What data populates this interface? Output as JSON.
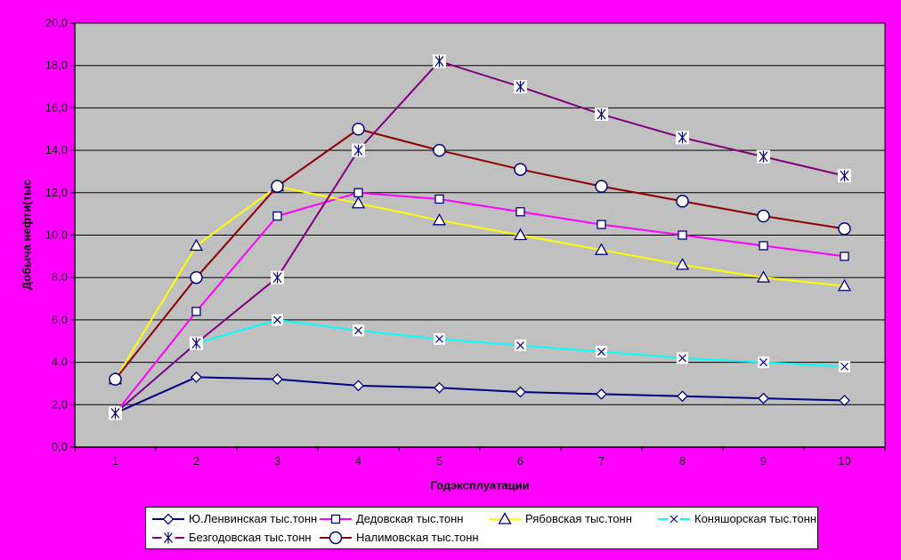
{
  "chart_data": {
    "type": "line",
    "title": "",
    "xlabel": "Годэксплуатации",
    "ylabel": "Добыча нефти(тыс",
    "x_categories": [
      "1",
      "2",
      "3",
      "4",
      "5",
      "6",
      "7",
      "8",
      "9",
      "10"
    ],
    "ylim": [
      0,
      20
    ],
    "ytick_step": 2,
    "ytick_labels": [
      "0,0",
      "2,0",
      "4,0",
      "6,0",
      "8,0",
      "10,0",
      "12,0",
      "14,0",
      "16,0",
      "18,0",
      "20,0"
    ],
    "grid": "horizontal",
    "legend_position": "bottom",
    "series": [
      {
        "name": "Ю.Ленвинская тыс.тонн",
        "color": "#000080",
        "marker": "diamond",
        "values": [
          1.6,
          3.3,
          3.2,
          2.9,
          2.8,
          2.6,
          2.5,
          2.4,
          2.3,
          2.2
        ]
      },
      {
        "name": "Дедовская тыс.тонн",
        "color": "#FF00FF",
        "marker": "square",
        "values": [
          1.6,
          6.4,
          10.9,
          12.0,
          11.7,
          11.1,
          10.5,
          10.0,
          9.5,
          9.0
        ]
      },
      {
        "name": "Рябовская тыс.тонн",
        "color": "#FFFF00",
        "marker": "triangle",
        "values": [
          3.2,
          9.5,
          12.3,
          11.5,
          10.7,
          10.0,
          9.3,
          8.6,
          8.0,
          7.6
        ]
      },
      {
        "name": "Коняшорская тыс.тонн",
        "color": "#00FFFF",
        "marker": "x",
        "values": [
          1.6,
          4.9,
          6.0,
          5.5,
          5.1,
          4.8,
          4.5,
          4.2,
          4.0,
          3.8
        ]
      },
      {
        "name": "Безгодовская тыс.тонн",
        "color": "#800080",
        "marker": "star",
        "values": [
          1.6,
          4.9,
          8.0,
          14.0,
          18.2,
          17.0,
          15.7,
          14.6,
          13.7,
          12.8
        ]
      },
      {
        "name": "Налимовская тыс.тонн",
        "color": "#8B0000",
        "marker": "circle",
        "values": [
          3.2,
          8.0,
          12.3,
          15.0,
          14.0,
          13.1,
          12.3,
          11.6,
          10.9,
          10.3
        ]
      }
    ],
    "colors": {
      "canvas_bg": "#FF00FF",
      "plot_bg": "#C0C0C0",
      "gridline": "#000000",
      "axis": "#000000",
      "tick_text": "#1a1a1a",
      "marker_fill": "#FFFFFF",
      "marker_stroke": "#000080",
      "legend_bg": "#FFFFFF",
      "legend_border": "#000000"
    }
  }
}
